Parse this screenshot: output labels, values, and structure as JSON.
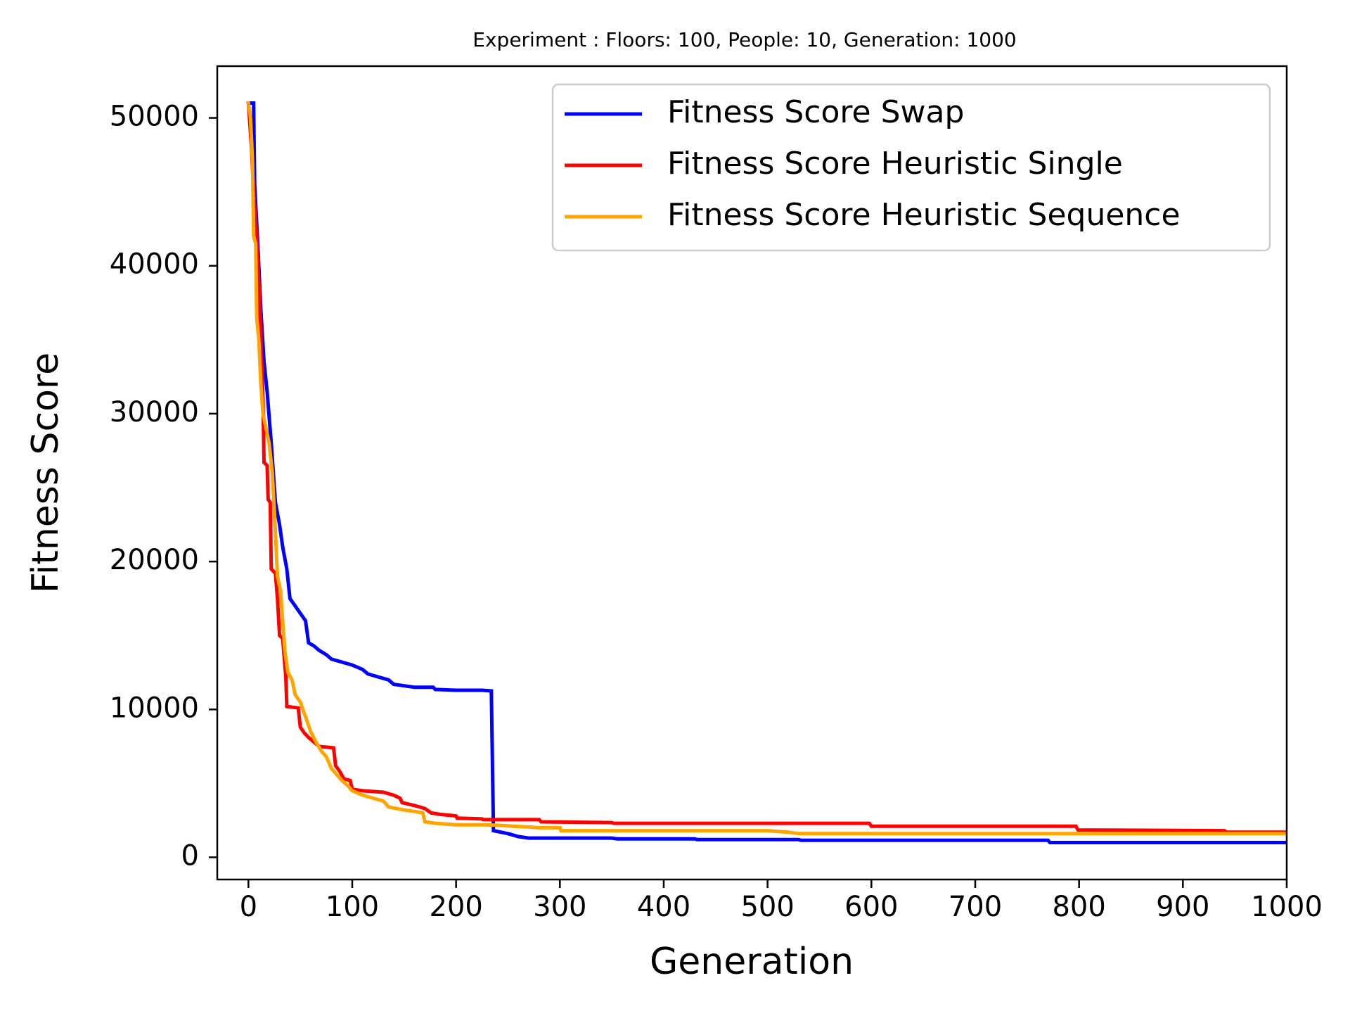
{
  "chart_data": {
    "type": "line",
    "title": "Experiment : Floors: 100, People: 10, Generation: 1000",
    "xlabel": "Generation",
    "ylabel": "Fitness Score",
    "xlim": [
      -30,
      1000
    ],
    "ylim": [
      -1500,
      53500
    ],
    "xticks": [
      0,
      100,
      200,
      300,
      400,
      500,
      600,
      700,
      800,
      900,
      1000
    ],
    "yticks": [
      0,
      10000,
      20000,
      30000,
      40000,
      50000
    ],
    "xtick_labels": [
      "0",
      "100",
      "200",
      "300",
      "400",
      "500",
      "600",
      "700",
      "800",
      "900",
      "1000"
    ],
    "ytick_labels": [
      "0",
      "10000",
      "20000",
      "30000",
      "40000",
      "50000"
    ],
    "grid": false,
    "legend_position": "top-right",
    "series": [
      {
        "name": "Fitness Score Swap",
        "color": "#0000ff",
        "points": [
          [
            0,
            51000
          ],
          [
            5,
            51000
          ],
          [
            6,
            45500
          ],
          [
            9,
            41500
          ],
          [
            12,
            37000
          ],
          [
            15,
            33500
          ],
          [
            18,
            31500
          ],
          [
            22,
            28000
          ],
          [
            26,
            24000
          ],
          [
            30,
            22500
          ],
          [
            33,
            21000
          ],
          [
            37,
            19500
          ],
          [
            40,
            17500
          ],
          [
            45,
            17000
          ],
          [
            50,
            16500
          ],
          [
            55,
            16000
          ],
          [
            58,
            14500
          ],
          [
            63,
            14300
          ],
          [
            68,
            14000
          ],
          [
            75,
            13700
          ],
          [
            80,
            13400
          ],
          [
            90,
            13200
          ],
          [
            100,
            13000
          ],
          [
            110,
            12700
          ],
          [
            115,
            12400
          ],
          [
            125,
            12200
          ],
          [
            135,
            12000
          ],
          [
            140,
            11700
          ],
          [
            150,
            11600
          ],
          [
            160,
            11500
          ],
          [
            178,
            11500
          ],
          [
            180,
            11350
          ],
          [
            200,
            11300
          ],
          [
            225,
            11300
          ],
          [
            234,
            11250
          ],
          [
            236,
            1800
          ],
          [
            250,
            1600
          ],
          [
            260,
            1400
          ],
          [
            270,
            1300
          ],
          [
            350,
            1300
          ],
          [
            355,
            1250
          ],
          [
            430,
            1250
          ],
          [
            432,
            1200
          ],
          [
            530,
            1200
          ],
          [
            532,
            1150
          ],
          [
            770,
            1150
          ],
          [
            772,
            1000
          ],
          [
            1000,
            1000
          ]
        ]
      },
      {
        "name": "Fitness Score Heuristic Single",
        "color": "#ff0000",
        "points": [
          [
            0,
            51000
          ],
          [
            3,
            48000
          ],
          [
            5,
            45000
          ],
          [
            8,
            42000
          ],
          [
            10,
            39000
          ],
          [
            12,
            35000
          ],
          [
            14,
            31000
          ],
          [
            15,
            26700
          ],
          [
            18,
            26500
          ],
          [
            19,
            24200
          ],
          [
            21,
            24000
          ],
          [
            22,
            19500
          ],
          [
            26,
            19200
          ],
          [
            28,
            17500
          ],
          [
            30,
            15000
          ],
          [
            33,
            14800
          ],
          [
            36,
            12200
          ],
          [
            37,
            10200
          ],
          [
            48,
            10100
          ],
          [
            50,
            8800
          ],
          [
            54,
            8400
          ],
          [
            58,
            8100
          ],
          [
            63,
            7800
          ],
          [
            68,
            7500
          ],
          [
            82,
            7400
          ],
          [
            84,
            6200
          ],
          [
            88,
            5800
          ],
          [
            92,
            5300
          ],
          [
            98,
            5200
          ],
          [
            100,
            4600
          ],
          [
            110,
            4500
          ],
          [
            130,
            4400
          ],
          [
            140,
            4200
          ],
          [
            146,
            4000
          ],
          [
            148,
            3700
          ],
          [
            160,
            3500
          ],
          [
            170,
            3300
          ],
          [
            176,
            3000
          ],
          [
            185,
            2900
          ],
          [
            200,
            2800
          ],
          [
            201,
            2650
          ],
          [
            225,
            2600
          ],
          [
            226,
            2550
          ],
          [
            280,
            2550
          ],
          [
            282,
            2400
          ],
          [
            350,
            2350
          ],
          [
            352,
            2300
          ],
          [
            598,
            2300
          ],
          [
            600,
            2100
          ],
          [
            797,
            2100
          ],
          [
            799,
            1850
          ],
          [
            940,
            1800
          ],
          [
            942,
            1700
          ],
          [
            1000,
            1700
          ]
        ]
      },
      {
        "name": "Fitness Score Heuristic Sequence",
        "color": "#ffa500",
        "points": [
          [
            0,
            51000
          ],
          [
            2,
            50000
          ],
          [
            4,
            47000
          ],
          [
            5,
            42000
          ],
          [
            7,
            41500
          ],
          [
            8,
            36500
          ],
          [
            10,
            35000
          ],
          [
            12,
            32000
          ],
          [
            14,
            30000
          ],
          [
            17,
            29000
          ],
          [
            20,
            28000
          ],
          [
            23,
            26000
          ],
          [
            26,
            22000
          ],
          [
            28,
            19000
          ],
          [
            31,
            18000
          ],
          [
            33,
            16000
          ],
          [
            35,
            14000
          ],
          [
            38,
            12500
          ],
          [
            42,
            12000
          ],
          [
            45,
            11000
          ],
          [
            50,
            10500
          ],
          [
            55,
            9500
          ],
          [
            60,
            8500
          ],
          [
            65,
            7800
          ],
          [
            70,
            7200
          ],
          [
            75,
            6800
          ],
          [
            80,
            6000
          ],
          [
            85,
            5600
          ],
          [
            90,
            5200
          ],
          [
            95,
            4900
          ],
          [
            100,
            4500
          ],
          [
            110,
            4200
          ],
          [
            120,
            4000
          ],
          [
            130,
            3800
          ],
          [
            135,
            3400
          ],
          [
            150,
            3200
          ],
          [
            160,
            3100
          ],
          [
            168,
            3000
          ],
          [
            170,
            2400
          ],
          [
            180,
            2300
          ],
          [
            200,
            2200
          ],
          [
            230,
            2200
          ],
          [
            245,
            2150
          ],
          [
            255,
            2100
          ],
          [
            270,
            2050
          ],
          [
            280,
            2000
          ],
          [
            300,
            2000
          ],
          [
            301,
            1800
          ],
          [
            500,
            1800
          ],
          [
            520,
            1700
          ],
          [
            530,
            1600
          ],
          [
            1000,
            1600
          ]
        ]
      }
    ]
  }
}
